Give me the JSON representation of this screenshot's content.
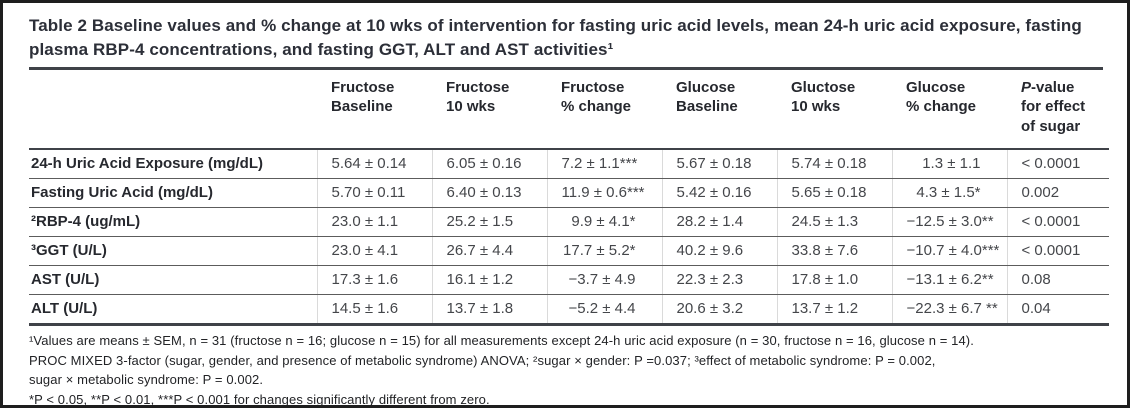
{
  "colors": {
    "text_dark": "#2c2f38",
    "rule_dark": "#3f4248",
    "row_rule": "#5c5c5c",
    "column_grid": "#dadada",
    "frame_border": "#1e1e1e"
  },
  "table": {
    "title": "Table 2 Baseline values and % change at 10 wks of intervention for fasting uric acid levels, mean 24-h uric acid exposure, fasting plasma RBP-4 concentrations, and fasting GGT, ALT and AST activities¹",
    "headers": [
      "",
      "Fructose\nBaseline",
      "Fructose\n10 wks",
      "Fructose\n% change",
      "Glucose\nBaseline",
      "Gluctose\n10 wks",
      "Glucose\n% change",
      "P-value\nfor effect\nof sugar"
    ],
    "rows": [
      {
        "label": "24-h Uric Acid Exposure (mg/dL)",
        "values": [
          "5.64 ± 0.14",
          "6.05 ± 0.16",
          "7.2 ± 1.1***",
          "5.67 ± 0.18",
          "5.74 ± 0.18",
          "1.3 ± 1.1",
          "< 0.0001"
        ]
      },
      {
        "label": "Fasting Uric Acid (mg/dL)",
        "values": [
          "5.70 ± 0.11",
          "6.40 ± 0.13",
          "11.9 ± 0.6***",
          "5.42 ± 0.16",
          "5.65 ± 0.18",
          "4.3 ± 1.5*",
          "0.002"
        ]
      },
      {
        "label": "²RBP-4 (ug/mL)",
        "values": [
          "23.0 ± 1.1",
          "25.2 ± 1.5",
          "9.9 ± 4.1*",
          "28.2 ± 1.4",
          "24.5 ± 1.3",
          "−12.5 ± 3.0**",
          "< 0.0001"
        ]
      },
      {
        "label": "³GGT (U/L)",
        "values": [
          "23.0 ± 4.1",
          "26.7 ± 4.4",
          "17.7 ± 5.2*",
          "40.2 ± 9.6",
          "33.8 ± 7.6",
          "−10.7 ± 4.0***",
          "< 0.0001"
        ]
      },
      {
        "label": "AST (U/L)",
        "values": [
          "17.3 ± 1.6",
          "16.1 ± 1.2",
          "−3.7 ± 4.9",
          "22.3 ± 2.3",
          "17.8 ± 1.0",
          "−13.1 ± 6.2**",
          "0.08"
        ]
      },
      {
        "label": "ALT (U/L)",
        "values": [
          "14.5 ± 1.6",
          "13.7 ± 1.8",
          "−5.2 ± 4.4",
          "20.6 ± 3.2",
          "13.7 ± 1.2",
          "−22.3 ± 6.7 **",
          "0.04"
        ]
      }
    ],
    "footnotes": [
      "¹Values are means ± SEM, n = 31 (fructose n = 16; glucose n = 15) for all measurements except 24-h uric acid exposure (n = 30, fructose n = 16, glucose n = 14).",
      "PROC MIXED 3-factor (sugar, gender, and presence of metabolic syndrome) ANOVA; ²sugar × gender: P =0.037; ³effect of metabolic syndrome: P = 0.002,",
      "sugar × metabolic syndrome: P = 0.002.",
      "*P < 0.05, **P < 0.01, ***P < 0.001 for changes significantly different from zero."
    ]
  }
}
